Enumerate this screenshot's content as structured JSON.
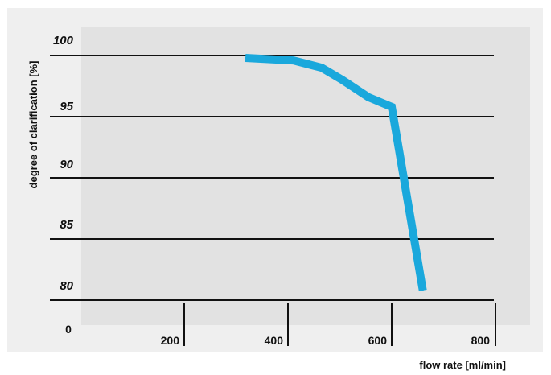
{
  "chart_data": {
    "type": "line",
    "xlabel": "flow rate [ml/min]",
    "ylabel": "degree of clarification [%]",
    "origin_label": "0",
    "x_ticks": [
      "200",
      "400",
      "600",
      "800"
    ],
    "y_ticks": [
      "80",
      "85",
      "90",
      "95",
      "100"
    ],
    "xlim": [
      0,
      800
    ],
    "ylim": [
      77,
      100
    ],
    "grid": "horizontal",
    "series": [
      {
        "color": "#1aa8dc",
        "x": [
          318,
          410,
          465,
          505,
          555,
          600,
          660
        ],
        "y": [
          99.8,
          99.6,
          99.0,
          98.0,
          96.6,
          95.8,
          80.8
        ]
      }
    ],
    "colors": {
      "outer_background": "#efefef",
      "plot_background": "#e2e2e2",
      "gridline": "#111111",
      "line": "#1aa8dc"
    }
  }
}
